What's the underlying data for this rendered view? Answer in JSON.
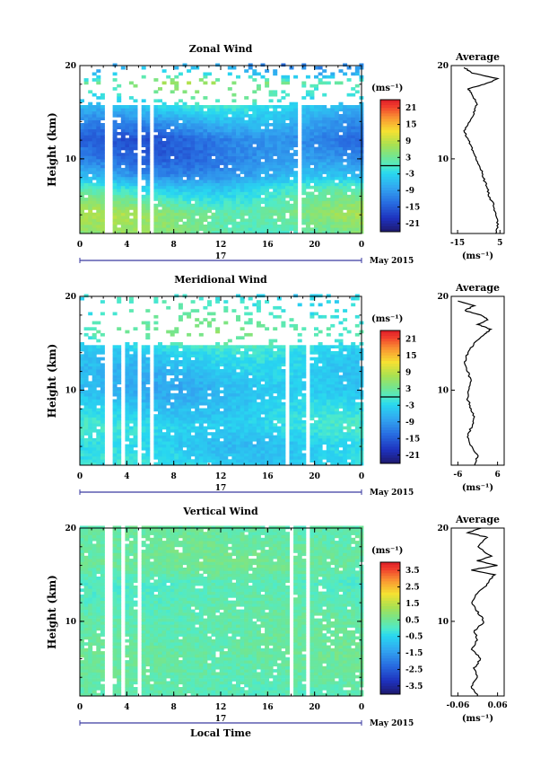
{
  "chart_data": [
    {
      "type": "heatmap",
      "title": "Zonal Wind",
      "ylabel": "Height (km)",
      "x_ticks": [
        "0",
        "4",
        "8",
        "12",
        "16",
        "20",
        "0"
      ],
      "y_ticks": [
        "20",
        "10"
      ],
      "xlim": [
        0,
        24
      ],
      "ylim": [
        2,
        20
      ],
      "date_day": "17",
      "date_month": "May 2015",
      "colorbar": {
        "unit": "(ms⁻¹)",
        "ticks": [
          "21",
          "15",
          "9",
          "3",
          "-3",
          "-9",
          "-15",
          "-21"
        ],
        "range": [
          -24,
          24
        ],
        "zero_line": true
      },
      "average": {
        "title": "Average",
        "y_ticks": [
          "20",
          "10"
        ],
        "x_ticks": [
          "-15",
          "5"
        ],
        "xlim": [
          -18,
          7
        ],
        "xlabel": "(ms⁻¹)",
        "profile": [
          [
            2,
            3
          ],
          [
            3,
            4
          ],
          [
            4,
            3
          ],
          [
            5,
            2
          ],
          [
            6,
            0
          ],
          [
            7,
            -1
          ],
          [
            8,
            -3
          ],
          [
            9,
            -4
          ],
          [
            10,
            -6
          ],
          [
            11,
            -8
          ],
          [
            12,
            -10
          ],
          [
            13,
            -12
          ],
          [
            14,
            -9
          ],
          [
            15,
            -7
          ],
          [
            16,
            -6
          ],
          [
            17,
            -8
          ],
          [
            17.5,
            -10
          ],
          [
            18,
            -2
          ],
          [
            18.6,
            4
          ],
          [
            19.2,
            -8
          ],
          [
            19.8,
            -12
          ]
        ]
      },
      "field": {
        "base": [
          [
            2,
            3
          ],
          [
            4,
            5
          ],
          [
            6,
            0
          ],
          [
            7,
            -3
          ],
          [
            8,
            -8
          ],
          [
            10,
            -12
          ],
          [
            12,
            -13
          ],
          [
            14,
            -8
          ],
          [
            16,
            -2
          ],
          [
            18,
            4
          ],
          [
            19,
            -5
          ],
          [
            20,
            -10
          ]
        ],
        "diurnal": 3,
        "gaps": [
          [
            2,
            2.5
          ],
          [
            4.8,
            5.1
          ],
          [
            5.6,
            6.0
          ],
          [
            18.5,
            18.8
          ]
        ],
        "sparse_above": 15.5
      }
    },
    {
      "type": "heatmap",
      "title": "Meridional Wind",
      "ylabel": "Height (km)",
      "x_ticks": [
        "0",
        "4",
        "8",
        "12",
        "16",
        "20",
        "0"
      ],
      "y_ticks": [
        "20",
        "10"
      ],
      "xlim": [
        0,
        24
      ],
      "ylim": [
        2,
        20
      ],
      "date_day": "17",
      "date_month": "May 2015",
      "colorbar": {
        "unit": "(ms⁻¹)",
        "ticks": [
          "21",
          "15",
          "9",
          "3",
          "-3",
          "-9",
          "-15",
          "-21"
        ],
        "range": [
          -24,
          24
        ],
        "zero_line": true
      },
      "average": {
        "title": "Average",
        "y_ticks": [
          "20",
          "10"
        ],
        "x_ticks": [
          "-6",
          "6"
        ],
        "xlim": [
          -8,
          8
        ],
        "xlabel": "(ms⁻¹)",
        "profile": [
          [
            2,
            -1
          ],
          [
            3,
            0
          ],
          [
            4,
            -2
          ],
          [
            5,
            -3
          ],
          [
            6,
            -2
          ],
          [
            7,
            -1
          ],
          [
            8,
            -2
          ],
          [
            9,
            -3
          ],
          [
            10,
            -3
          ],
          [
            11,
            -2
          ],
          [
            12,
            -3
          ],
          [
            13,
            -4
          ],
          [
            14,
            -3
          ],
          [
            15,
            -1
          ],
          [
            16,
            2
          ],
          [
            16.5,
            4
          ],
          [
            17,
            0
          ],
          [
            17.5,
            3
          ],
          [
            18,
            1
          ],
          [
            18.5,
            -4
          ],
          [
            19,
            -1
          ],
          [
            19.5,
            -6
          ]
        ]
      },
      "field": {
        "base": [
          [
            2,
            -3
          ],
          [
            4,
            -4
          ],
          [
            6,
            -2
          ],
          [
            8,
            -4
          ],
          [
            10,
            -6
          ],
          [
            12,
            -5
          ],
          [
            14,
            -3
          ],
          [
            16,
            3
          ],
          [
            18,
            0
          ],
          [
            20,
            -2
          ]
        ],
        "diurnal": 2,
        "gaps": [
          [
            2,
            2.5
          ],
          [
            3.5,
            3.8
          ],
          [
            4.6,
            4.9
          ],
          [
            5.6,
            6.0
          ],
          [
            17.2,
            17.5
          ],
          [
            19.0,
            19.3
          ]
        ],
        "sparse_above": 14.5
      }
    },
    {
      "type": "heatmap",
      "title": "Vertical Wind",
      "ylabel": "Height (km)",
      "xlabel": "Local Time",
      "x_ticks": [
        "0",
        "4",
        "8",
        "12",
        "16",
        "20",
        "0"
      ],
      "y_ticks": [
        "20",
        "10"
      ],
      "xlim": [
        0,
        24
      ],
      "ylim": [
        2,
        20
      ],
      "date_day": "17",
      "date_month": "May 2015",
      "colorbar": {
        "unit": "(ms⁻¹)",
        "ticks": [
          "3.5",
          "2.5",
          "1.5",
          "0.5",
          "-0.5",
          "-1.5",
          "-2.5",
          "-3.5"
        ],
        "range": [
          -4,
          4
        ],
        "zero_line": false
      },
      "average": {
        "title": "Average",
        "y_ticks": [
          "20",
          "10"
        ],
        "x_ticks": [
          "-0.06",
          "0.06"
        ],
        "xlim": [
          -0.08,
          0.08
        ],
        "xlabel": "(ms⁻¹)",
        "profile": [
          [
            2,
            0.0
          ],
          [
            3,
            -0.02
          ],
          [
            4,
            0.0
          ],
          [
            5,
            -0.01
          ],
          [
            6,
            0.01
          ],
          [
            7,
            -0.02
          ],
          [
            8,
            0.0
          ],
          [
            9,
            -0.01
          ],
          [
            10,
            0.02
          ],
          [
            11,
            0.0
          ],
          [
            12,
            -0.02
          ],
          [
            13,
            0.0
          ],
          [
            14,
            0.03
          ],
          [
            15,
            0.05
          ],
          [
            15.5,
            -0.02
          ],
          [
            16,
            0.06
          ],
          [
            16.5,
            0.0
          ],
          [
            17,
            0.04
          ],
          [
            18,
            0.0
          ],
          [
            19,
            0.03
          ],
          [
            19.5,
            -0.03
          ],
          [
            20,
            0.01
          ]
        ]
      },
      "field": {
        "base": [
          [
            2,
            0.2
          ],
          [
            6,
            0.4
          ],
          [
            10,
            0.3
          ],
          [
            14,
            0.1
          ],
          [
            16,
            0.5
          ],
          [
            20,
            0.3
          ]
        ],
        "diurnal": 0.1,
        "gaps": [
          [
            2,
            2.5
          ],
          [
            3.5,
            3.8
          ],
          [
            4.8,
            5.0
          ],
          [
            5.6,
            5.9
          ],
          [
            17.8,
            18.1
          ],
          [
            19.2,
            19.4
          ]
        ],
        "sparse_above": 20
      }
    }
  ]
}
